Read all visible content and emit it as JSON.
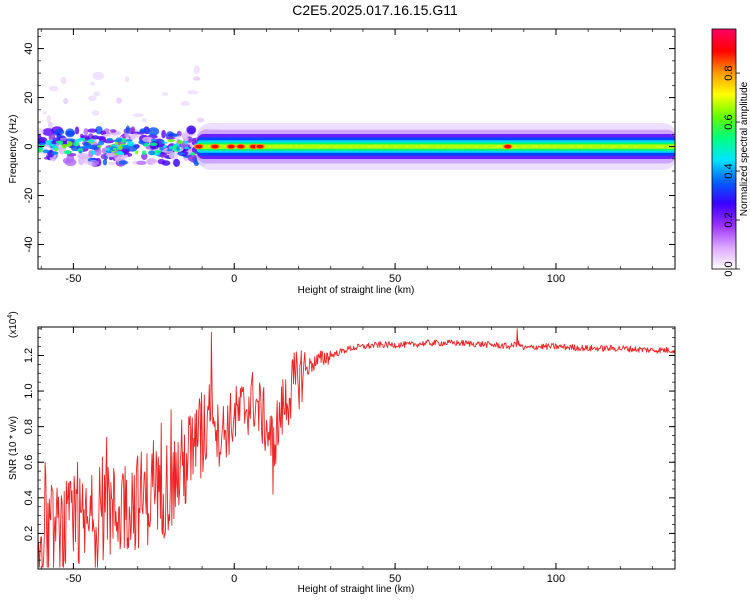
{
  "figure_title": "C2E5.2025.017.16.15.G11",
  "chart_data": [
    {
      "type": "heatmap",
      "title": "",
      "xlabel": "Height of straight line (km)",
      "ylabel": "Frequency (Hz)",
      "xlim": [
        -61,
        137
      ],
      "ylim": [
        -50,
        48
      ],
      "xticks": [
        -50,
        0,
        50,
        100
      ],
      "yticks": [
        -40,
        -20,
        0,
        20,
        40
      ],
      "colorbar": {
        "label": "Normalized spectral amplitude",
        "range": [
          0,
          0.98
        ],
        "ticks": [
          "0.0",
          "0.2",
          "0.4",
          "0.6",
          "0.8"
        ],
        "colors": [
          "#ffffff",
          "#dca6ff",
          "#9b30ff",
          "#3a00ff",
          "#0060ff",
          "#00e5ff",
          "#00ff7f",
          "#66ff00",
          "#ffff00",
          "#ff9900",
          "#ff0000",
          "#ff0066"
        ]
      },
      "band_center_hz": 0,
      "band_halfwidth_hz": 3,
      "peak_points_km": [
        -11,
        -6,
        -1,
        2,
        6,
        8,
        85
      ]
    },
    {
      "type": "line",
      "title": "",
      "xlabel": "Height of straight line (km)",
      "ylabel": "SNR (10 * v/v)",
      "y_multiplier": "(x10",
      "y_multiplier_exp": "4",
      "xlim": [
        -61,
        137
      ],
      "ylim": [
        0,
        1.36
      ],
      "xticks": [
        -50,
        0,
        50,
        100
      ],
      "yticks": [
        0.2,
        0.4,
        0.6,
        0.8,
        1.0,
        1.2
      ],
      "ytick_labels": [
        "0.2",
        "0.4",
        "0.6",
        "0.8",
        "1.0",
        "1.2"
      ],
      "series": [
        {
          "color": "#ee2222",
          "x": [
            -61,
            -58,
            -55,
            -52,
            -49,
            -46,
            -43,
            -40,
            -37,
            -34,
            -31,
            -28,
            -25,
            -22,
            -19,
            -16,
            -13,
            -10,
            -8,
            -7,
            -5,
            -2,
            0,
            3,
            6,
            9,
            12,
            15,
            18,
            21,
            24,
            27,
            30,
            33,
            36,
            40,
            45,
            50,
            55,
            60,
            70,
            80,
            86,
            88,
            90,
            95,
            100,
            110,
            120,
            130,
            137
          ],
          "y": [
            0.2,
            0.18,
            0.2,
            0.22,
            0.25,
            0.23,
            0.28,
            0.3,
            0.32,
            0.36,
            0.38,
            0.4,
            0.42,
            0.45,
            0.5,
            0.58,
            0.65,
            0.72,
            0.9,
            1.0,
            0.75,
            0.8,
            0.85,
            0.9,
            0.95,
            0.85,
            0.7,
            0.9,
            1.02,
            1.1,
            1.15,
            1.18,
            1.2,
            1.22,
            1.24,
            1.25,
            1.26,
            1.26,
            1.26,
            1.27,
            1.27,
            1.26,
            1.25,
            1.27,
            1.24,
            1.25,
            1.25,
            1.24,
            1.24,
            1.23,
            1.23
          ]
        }
      ],
      "annotations_peaks": [
        {
          "x": -7,
          "y": 1.33
        },
        {
          "x": 88,
          "y": 1.35
        },
        {
          "x": 12,
          "y": 0.42
        }
      ]
    }
  ]
}
